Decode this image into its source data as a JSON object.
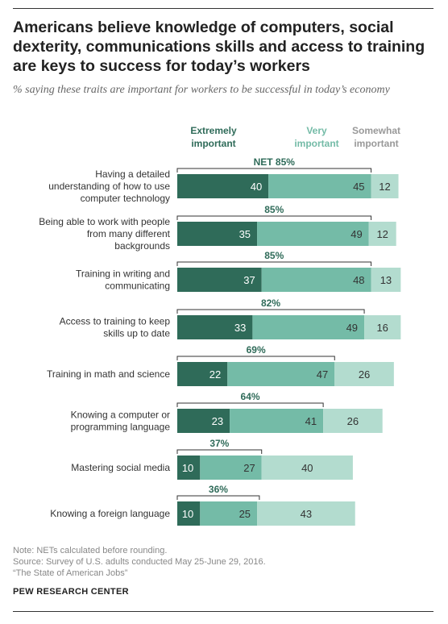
{
  "title": "Americans believe knowledge of computers, social dexterity, communications skills and access to training are keys to success for today’s workers",
  "subtitle": "% saying these traits are important for workers to be successful in today’s economy",
  "chart_data": {
    "type": "bar",
    "orientation": "horizontal",
    "stacked": true,
    "categories": [
      [
        "Having a detailed",
        "understanding of how to use",
        "computer technology"
      ],
      [
        "Being able to work with people",
        "from many different",
        "backgrounds"
      ],
      [
        "Training in writing and",
        "communicating"
      ],
      [
        "Access to training to keep",
        "skills up to date"
      ],
      [
        "Training in math and science"
      ],
      [
        "Knowing a computer or",
        "programming language"
      ],
      [
        "Mastering social media"
      ],
      [
        "Knowing a foreign language"
      ]
    ],
    "series": [
      {
        "name": "Extremely important",
        "legend_lines": [
          "Extremely",
          "important"
        ],
        "color": "#2f6b59",
        "label_color": "#ffffff",
        "values": [
          40,
          35,
          37,
          33,
          22,
          23,
          10,
          10
        ]
      },
      {
        "name": "Very important",
        "legend_lines": [
          "Very",
          "important"
        ],
        "color": "#74bba7",
        "label_color": "#333333",
        "values": [
          45,
          49,
          48,
          49,
          47,
          41,
          27,
          25
        ]
      },
      {
        "name": "Somewhat important",
        "legend_lines": [
          "Somewhat",
          "important"
        ],
        "color": "#b3dccf",
        "label_color": "#333333",
        "values": [
          12,
          12,
          13,
          16,
          26,
          26,
          40,
          43
        ]
      }
    ],
    "net_labels": [
      "NET 85%",
      "85%",
      "85%",
      "82%",
      "69%",
      "64%",
      "37%",
      "36%"
    ],
    "net_values": [
      85,
      85,
      85,
      82,
      69,
      64,
      37,
      36
    ],
    "net_color": "#2f6b59",
    "grid": false
  },
  "footer": {
    "note": "Note: NETs calculated before rounding.",
    "source": "Source: Survey of U.S. adults conducted May 25-June 29, 2016.",
    "report": "“The State of American Jobs”",
    "brand": "PEW RESEARCH CENTER"
  }
}
